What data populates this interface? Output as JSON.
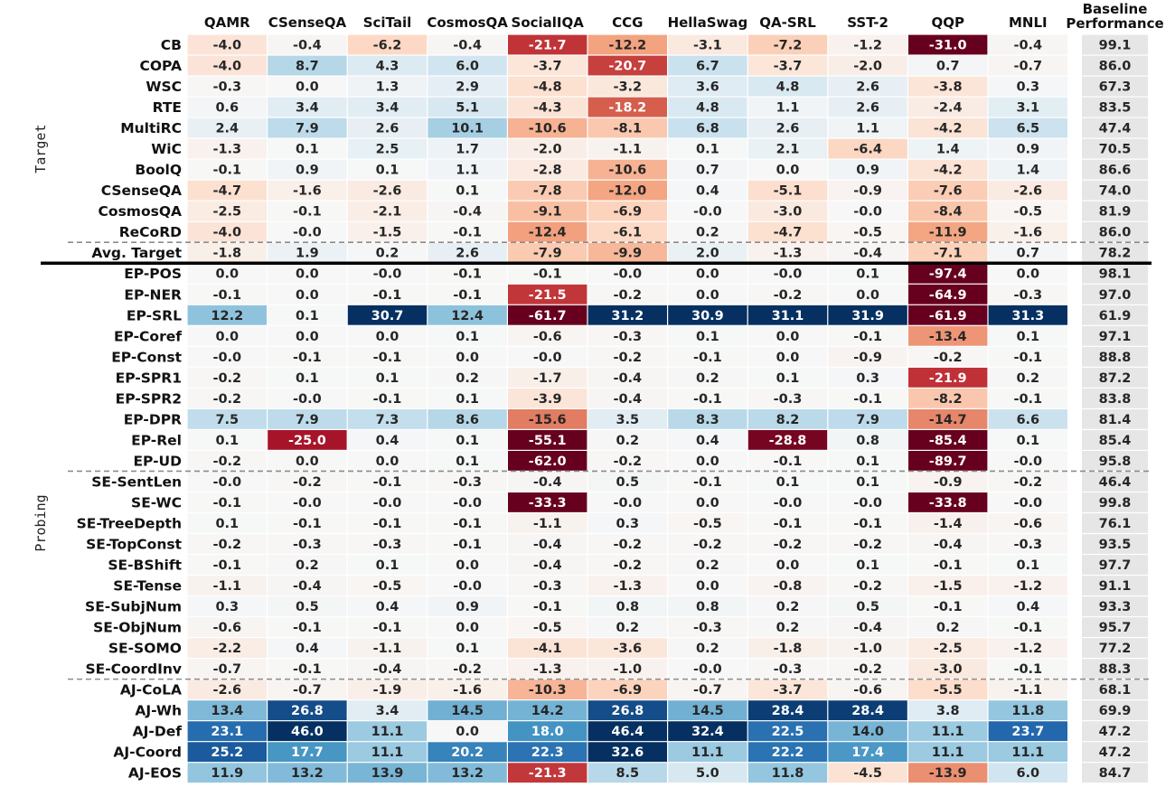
{
  "chart_data": {
    "type": "heatmap",
    "columns": [
      "QAMR",
      "CSenseQA",
      "SciTail",
      "CosmosQA",
      "SocialIQA",
      "CCG",
      "HellaSwag",
      "QA-SRL",
      "SST-2",
      "QQP",
      "MNLI"
    ],
    "baseline_header": [
      "Baseline",
      "Performance"
    ],
    "groups": [
      {
        "label": "Target",
        "rows": [
          "CB",
          "COPA",
          "WSC",
          "RTE",
          "MultiRC",
          "WiC",
          "BoolQ",
          "CSenseQA",
          "CosmosQA",
          "ReCoRD",
          "Avg. Target"
        ]
      },
      {
        "label": "Probing",
        "rows": [
          "EP-POS",
          "EP-NER",
          "EP-SRL",
          "EP-Coref",
          "EP-Const",
          "EP-SPR1",
          "EP-SPR2",
          "EP-DPR",
          "EP-Rel",
          "EP-UD",
          "SE-SentLen",
          "SE-WC",
          "SE-TreeDepth",
          "SE-TopConst",
          "SE-BShift",
          "SE-Tense",
          "SE-SubjNum",
          "SE-ObjNum",
          "SE-SOMO",
          "SE-CoordInv",
          "AJ-CoLA",
          "AJ-Wh",
          "AJ-Def",
          "AJ-Coord",
          "AJ-EOS"
        ]
      }
    ],
    "rows": [
      {
        "name": "CB",
        "values": [
          "-4.0",
          "-0.4",
          "-6.2",
          "-0.4",
          "-21.7",
          "-12.2",
          "-3.1",
          "-7.2",
          "-1.2",
          "-31.0",
          "-0.4"
        ],
        "baseline": "99.1"
      },
      {
        "name": "COPA",
        "values": [
          "-4.0",
          "8.7",
          "4.3",
          "6.0",
          "-3.7",
          "-20.7",
          "6.7",
          "-3.7",
          "-2.0",
          "0.7",
          "-0.7"
        ],
        "baseline": "86.0"
      },
      {
        "name": "WSC",
        "values": [
          "-0.3",
          "0.0",
          "1.3",
          "2.9",
          "-4.8",
          "-3.2",
          "3.6",
          "4.8",
          "2.6",
          "-3.8",
          "0.3"
        ],
        "baseline": "67.3"
      },
      {
        "name": "RTE",
        "values": [
          "0.6",
          "3.4",
          "3.4",
          "5.1",
          "-4.3",
          "-18.2",
          "4.8",
          "1.1",
          "2.6",
          "-2.4",
          "3.1"
        ],
        "baseline": "83.5"
      },
      {
        "name": "MultiRC",
        "values": [
          "2.4",
          "7.9",
          "2.6",
          "10.1",
          "-10.6",
          "-8.1",
          "6.8",
          "2.6",
          "1.1",
          "-4.2",
          "6.5"
        ],
        "baseline": "47.4"
      },
      {
        "name": "WiC",
        "values": [
          "-1.3",
          "0.1",
          "2.5",
          "1.7",
          "-2.0",
          "-1.1",
          "0.1",
          "2.1",
          "-6.4",
          "1.4",
          "0.9"
        ],
        "baseline": "70.5"
      },
      {
        "name": "BoolQ",
        "values": [
          "-0.1",
          "0.9",
          "0.1",
          "1.1",
          "-2.8",
          "-10.6",
          "0.7",
          "0.0",
          "0.9",
          "-4.2",
          "1.4"
        ],
        "baseline": "86.6"
      },
      {
        "name": "CSenseQA",
        "values": [
          "-4.7",
          "-1.6",
          "-2.6",
          "0.1",
          "-7.8",
          "-12.0",
          "0.4",
          "-5.1",
          "-0.9",
          "-7.6",
          "-2.6"
        ],
        "baseline": "74.0"
      },
      {
        "name": "CosmosQA",
        "values": [
          "-2.5",
          "-0.1",
          "-2.1",
          "-0.4",
          "-9.1",
          "-6.9",
          "-0.0",
          "-3.0",
          "-0.0",
          "-8.4",
          "-0.5"
        ],
        "baseline": "81.9"
      },
      {
        "name": "ReCoRD",
        "values": [
          "-4.0",
          "-0.0",
          "-1.5",
          "-0.1",
          "-12.4",
          "-6.1",
          "0.2",
          "-4.7",
          "-0.5",
          "-11.9",
          "-1.6"
        ],
        "baseline": "86.0"
      },
      {
        "name": "Avg. Target",
        "values": [
          "-1.8",
          "1.9",
          "0.2",
          "2.6",
          "-7.9",
          "-9.9",
          "2.0",
          "-1.3",
          "-0.4",
          "-7.1",
          "0.7"
        ],
        "baseline": "78.2"
      },
      {
        "name": "EP-POS",
        "values": [
          "0.0",
          "0.0",
          "-0.0",
          "-0.1",
          "-0.1",
          "-0.0",
          "0.0",
          "-0.0",
          "0.1",
          "-97.4",
          "0.0"
        ],
        "baseline": "98.1"
      },
      {
        "name": "EP-NER",
        "values": [
          "-0.1",
          "0.0",
          "-0.1",
          "-0.1",
          "-21.5",
          "-0.2",
          "0.0",
          "-0.2",
          "0.0",
          "-64.9",
          "-0.3"
        ],
        "baseline": "97.0"
      },
      {
        "name": "EP-SRL",
        "values": [
          "12.2",
          "0.1",
          "30.7",
          "12.4",
          "-61.7",
          "31.2",
          "30.9",
          "31.1",
          "31.9",
          "-61.9",
          "31.3"
        ],
        "baseline": "61.9"
      },
      {
        "name": "EP-Coref",
        "values": [
          "0.0",
          "0.0",
          "0.0",
          "0.1",
          "-0.6",
          "-0.3",
          "0.1",
          "0.0",
          "-0.1",
          "-13.4",
          "0.1"
        ],
        "baseline": "97.1"
      },
      {
        "name": "EP-Const",
        "values": [
          "-0.0",
          "-0.1",
          "-0.1",
          "0.0",
          "-0.0",
          "-0.2",
          "-0.1",
          "0.0",
          "-0.9",
          "-0.2",
          "-0.1"
        ],
        "baseline": "88.8"
      },
      {
        "name": "EP-SPR1",
        "values": [
          "-0.2",
          "0.1",
          "0.1",
          "0.2",
          "-1.7",
          "-0.4",
          "0.2",
          "0.1",
          "0.3",
          "-21.9",
          "0.2"
        ],
        "baseline": "87.2"
      },
      {
        "name": "EP-SPR2",
        "values": [
          "-0.2",
          "-0.0",
          "-0.1",
          "0.1",
          "-3.9",
          "-0.4",
          "-0.1",
          "-0.3",
          "-0.1",
          "-8.2",
          "-0.1"
        ],
        "baseline": "83.8"
      },
      {
        "name": "EP-DPR",
        "values": [
          "7.5",
          "7.9",
          "7.3",
          "8.6",
          "-15.6",
          "3.5",
          "8.3",
          "8.2",
          "7.9",
          "-14.7",
          "6.6"
        ],
        "baseline": "81.4"
      },
      {
        "name": "EP-Rel",
        "values": [
          "0.1",
          "-25.0",
          "0.4",
          "0.1",
          "-55.1",
          "0.2",
          "0.4",
          "-28.8",
          "0.8",
          "-85.4",
          "0.1"
        ],
        "baseline": "85.4"
      },
      {
        "name": "EP-UD",
        "values": [
          "-0.2",
          "0.0",
          "0.0",
          "0.1",
          "-62.0",
          "-0.2",
          "0.0",
          "-0.1",
          "0.1",
          "-89.7",
          "-0.0"
        ],
        "baseline": "95.8"
      },
      {
        "name": "SE-SentLen",
        "values": [
          "-0.0",
          "-0.2",
          "-0.1",
          "-0.3",
          "-0.4",
          "0.5",
          "-0.1",
          "0.1",
          "0.1",
          "-0.9",
          "-0.2"
        ],
        "baseline": "46.4"
      },
      {
        "name": "SE-WC",
        "values": [
          "-0.1",
          "-0.0",
          "-0.0",
          "-0.0",
          "-33.3",
          "-0.0",
          "0.0",
          "-0.0",
          "-0.0",
          "-33.8",
          "-0.0"
        ],
        "baseline": "99.8"
      },
      {
        "name": "SE-TreeDepth",
        "values": [
          "0.1",
          "-0.1",
          "-0.1",
          "-0.1",
          "-1.1",
          "0.3",
          "-0.5",
          "-0.1",
          "-0.1",
          "-1.4",
          "-0.6"
        ],
        "baseline": "76.1"
      },
      {
        "name": "SE-TopConst",
        "values": [
          "-0.2",
          "-0.3",
          "-0.3",
          "-0.1",
          "-0.4",
          "-0.2",
          "-0.2",
          "-0.2",
          "-0.2",
          "-0.4",
          "-0.3"
        ],
        "baseline": "93.5"
      },
      {
        "name": "SE-BShift",
        "values": [
          "-0.1",
          "0.2",
          "0.1",
          "0.0",
          "-0.4",
          "-0.2",
          "0.2",
          "0.0",
          "0.1",
          "-0.1",
          "0.1"
        ],
        "baseline": "97.7"
      },
      {
        "name": "SE-Tense",
        "values": [
          "-1.1",
          "-0.4",
          "-0.5",
          "-0.0",
          "-0.3",
          "-1.3",
          "0.0",
          "-0.8",
          "-0.2",
          "-1.5",
          "-1.2"
        ],
        "baseline": "91.1"
      },
      {
        "name": "SE-SubjNum",
        "values": [
          "0.3",
          "0.5",
          "0.4",
          "0.9",
          "-0.1",
          "0.8",
          "0.8",
          "0.2",
          "0.5",
          "-0.1",
          "0.4"
        ],
        "baseline": "93.3"
      },
      {
        "name": "SE-ObjNum",
        "values": [
          "-0.6",
          "-0.1",
          "-0.1",
          "0.0",
          "-0.5",
          "0.2",
          "-0.3",
          "0.2",
          "-0.4",
          "0.2",
          "-0.1"
        ],
        "baseline": "95.7"
      },
      {
        "name": "SE-SOMO",
        "values": [
          "-2.2",
          "0.4",
          "-1.1",
          "0.1",
          "-4.1",
          "-3.6",
          "0.2",
          "-1.8",
          "-1.0",
          "-2.5",
          "-1.2"
        ],
        "baseline": "77.2"
      },
      {
        "name": "SE-CoordInv",
        "values": [
          "-0.7",
          "-0.1",
          "-0.4",
          "-0.2",
          "-1.3",
          "-1.0",
          "-0.0",
          "-0.3",
          "-0.2",
          "-3.0",
          "-0.1"
        ],
        "baseline": "88.3"
      },
      {
        "name": "AJ-CoLA",
        "values": [
          "-2.6",
          "-0.7",
          "-1.9",
          "-1.6",
          "-10.3",
          "-6.9",
          "-0.7",
          "-3.7",
          "-0.6",
          "-5.5",
          "-1.1"
        ],
        "baseline": "68.1"
      },
      {
        "name": "AJ-Wh",
        "values": [
          "13.4",
          "26.8",
          "3.4",
          "14.5",
          "14.2",
          "26.8",
          "14.5",
          "28.4",
          "28.4",
          "3.8",
          "11.8"
        ],
        "baseline": "69.9"
      },
      {
        "name": "AJ-Def",
        "values": [
          "23.1",
          "46.0",
          "11.1",
          "0.0",
          "18.0",
          "46.4",
          "32.4",
          "22.5",
          "14.0",
          "11.1",
          "23.7"
        ],
        "baseline": "47.2"
      },
      {
        "name": "AJ-Coord",
        "values": [
          "25.2",
          "17.7",
          "11.1",
          "20.2",
          "22.3",
          "32.6",
          "11.1",
          "22.2",
          "17.4",
          "11.1",
          "11.1"
        ],
        "baseline": "47.2"
      },
      {
        "name": "AJ-EOS",
        "values": [
          "11.9",
          "13.2",
          "13.9",
          "13.2",
          "-21.3",
          "8.5",
          "5.0",
          "11.8",
          "-4.5",
          "-13.9",
          "6.0"
        ],
        "baseline": "84.7"
      }
    ],
    "colormap": "RdBu",
    "color_range": [
      -30,
      30
    ],
    "colors": {
      "negative_max": "#67001f",
      "positive_max": "#053061",
      "neutral": "#f7f7f7",
      "baseline_bg": "#e6e6e6"
    }
  }
}
